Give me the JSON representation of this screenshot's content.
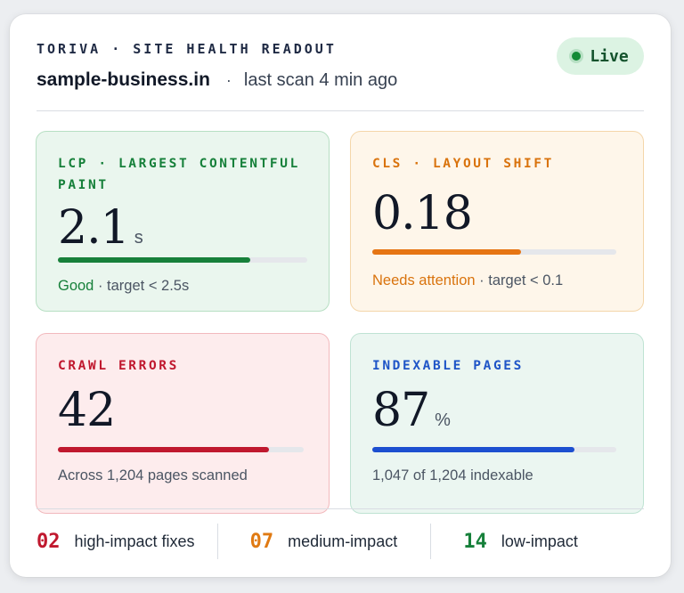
{
  "header": {
    "eyebrow": "TORIVA · SITE HEALTH READOUT",
    "domain": "sample-business.in",
    "separator": "·",
    "scan_status": "last scan 4 min ago",
    "live_label": "Live"
  },
  "metrics": [
    {
      "label": "LCP · LARGEST CONTENTFUL PAINT",
      "value": "2.1",
      "unit": "s",
      "progress": 0.77,
      "status": "Good",
      "detail": " · target < 2.5s",
      "color": "#17803a"
    },
    {
      "label": "CLS · LAYOUT SHIFT",
      "value": "0.18",
      "unit": "",
      "progress": 0.61,
      "status": "Needs attention",
      "detail": " · target < 0.1",
      "color": "#e67513"
    },
    {
      "label": "CRAWL ERRORS",
      "value": "42",
      "unit": "",
      "progress": 0.86,
      "status": "",
      "detail": "Across 1,204 pages scanned",
      "color": "#c0182e"
    },
    {
      "label": "INDEXABLE PAGES",
      "value": "87",
      "unit": "%",
      "progress": 0.83,
      "status": "",
      "detail": "1,047 of 1,204 indexable",
      "color": "#1c4fd0"
    }
  ],
  "fixes": [
    {
      "count": "02",
      "label": "high-impact fixes",
      "color": "#c0182e"
    },
    {
      "count": "07",
      "label": "medium-impact",
      "color": "#e07a12"
    },
    {
      "count": "14",
      "label": "low-impact",
      "color": "#16803a"
    }
  ]
}
